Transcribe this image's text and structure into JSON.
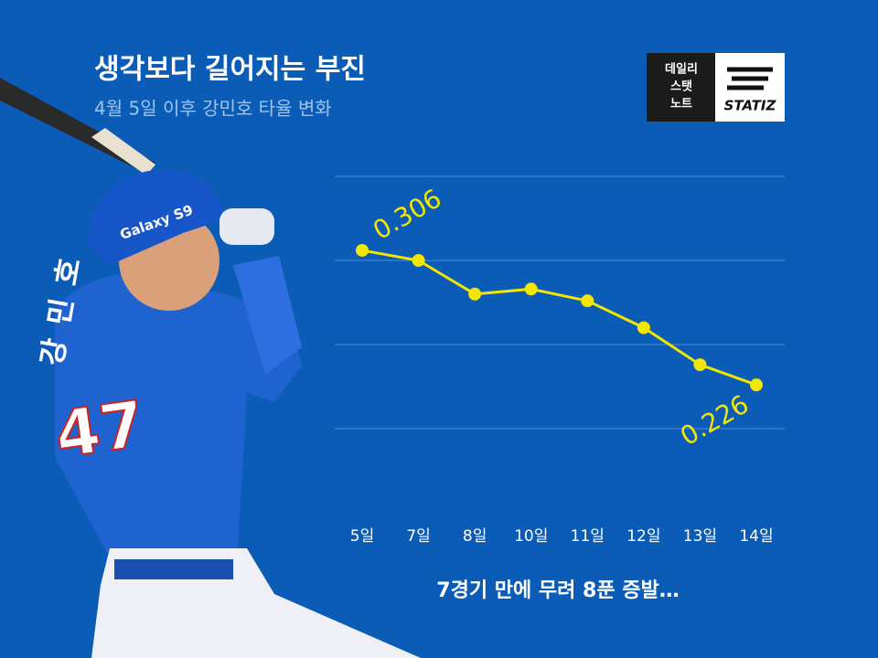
{
  "chart_data": {
    "type": "line",
    "title": "생각보다 길어지는 부진",
    "subtitle": "4월 5일 이후 강민호 타율 변화",
    "annotation": "7경기 만에 무려 8푼 증발…",
    "categories": [
      "5일",
      "7일",
      "8일",
      "10일",
      "11일",
      "12일",
      "13일",
      "14일"
    ],
    "series": [
      {
        "color": "#f3e600",
        "values": [
          0.306,
          0.3,
          0.28,
          0.283,
          0.276,
          0.26,
          0.238,
          0.226
        ]
      }
    ],
    "ylim": [
      0.2,
      0.35
    ],
    "yticks": [
      0.2,
      0.25,
      0.3,
      0.35
    ],
    "grid": true
  },
  "logo": {
    "lines": [
      "데일리",
      "스탯",
      "노트"
    ],
    "brand": "STATIZ"
  },
  "player": {
    "name": "강 민 호",
    "number": "47",
    "helmet": "Galaxy S9"
  }
}
